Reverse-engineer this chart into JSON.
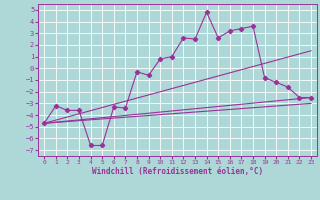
{
  "xlabel": "Windchill (Refroidissement éolien,°C)",
  "bg_color": "#aed8d8",
  "line_color": "#993399",
  "grid_color": "#ffffff",
  "xlim": [
    -0.5,
    23.5
  ],
  "ylim": [
    -7.5,
    5.5
  ],
  "xticks": [
    0,
    1,
    2,
    3,
    4,
    5,
    6,
    7,
    8,
    9,
    10,
    11,
    12,
    13,
    14,
    15,
    16,
    17,
    18,
    19,
    20,
    21,
    22,
    23
  ],
  "yticks": [
    -7,
    -6,
    -5,
    -4,
    -3,
    -2,
    -1,
    0,
    1,
    2,
    3,
    4,
    5
  ],
  "line1_x": [
    0,
    1,
    2,
    3,
    4,
    5,
    6,
    7,
    8,
    9,
    10,
    11,
    12,
    13,
    14,
    15,
    16,
    17,
    18,
    19,
    20,
    21,
    22,
    23
  ],
  "line1_y": [
    -4.7,
    -3.2,
    -3.6,
    -3.6,
    -6.6,
    -6.6,
    -3.3,
    -3.4,
    -0.3,
    -0.6,
    0.8,
    1.0,
    2.6,
    2.5,
    4.8,
    2.6,
    3.2,
    3.4,
    3.6,
    -0.8,
    -1.2,
    -1.6,
    -2.5,
    -2.5
  ],
  "line2_x": [
    0,
    23
  ],
  "line2_y": [
    -4.7,
    1.5
  ],
  "line3_x": [
    0,
    23
  ],
  "line3_y": [
    -4.7,
    -2.5
  ],
  "line4_x": [
    0,
    23
  ],
  "line4_y": [
    -4.7,
    -3.0
  ]
}
